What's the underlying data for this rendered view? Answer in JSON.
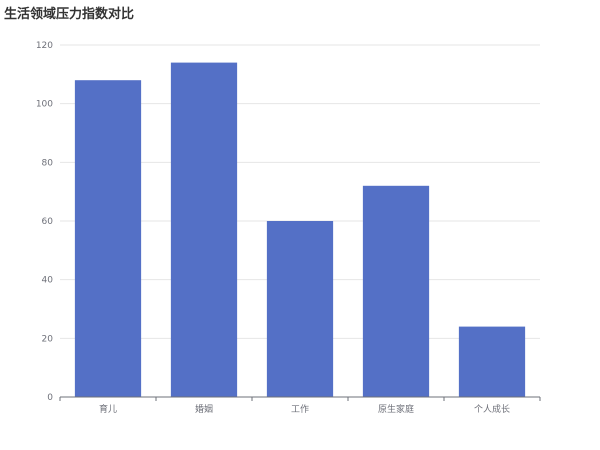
{
  "chart_data": {
    "type": "bar",
    "title": "生活领域压力指数对比",
    "categories": [
      "育儿",
      "婚姻",
      "工作",
      "原生家庭",
      "个人成长"
    ],
    "values": [
      108,
      114,
      60,
      72,
      24
    ],
    "ylim": [
      0,
      120
    ],
    "yticks": [
      0,
      20,
      40,
      60,
      80,
      100,
      120
    ],
    "xlabel": "",
    "ylabel": "",
    "grid": true,
    "legend": "none",
    "colors": {
      "bar": "#5470c6",
      "grid": "#e6e6e6",
      "axis": "#6e7079",
      "text": "#6e7079",
      "title": "#333333"
    }
  }
}
